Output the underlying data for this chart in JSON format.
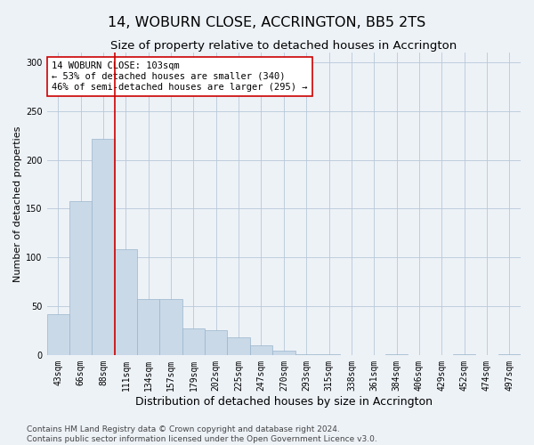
{
  "title": "14, WOBURN CLOSE, ACCRINGTON, BB5 2TS",
  "subtitle": "Size of property relative to detached houses in Accrington",
  "xlabel": "Distribution of detached houses by size in Accrington",
  "ylabel": "Number of detached properties",
  "footer_line1": "Contains HM Land Registry data © Crown copyright and database right 2024.",
  "footer_line2": "Contains public sector information licensed under the Open Government Licence v3.0.",
  "categories": [
    "43sqm",
    "66sqm",
    "88sqm",
    "111sqm",
    "134sqm",
    "157sqm",
    "179sqm",
    "202sqm",
    "225sqm",
    "247sqm",
    "270sqm",
    "293sqm",
    "315sqm",
    "338sqm",
    "361sqm",
    "384sqm",
    "406sqm",
    "429sqm",
    "452sqm",
    "474sqm",
    "497sqm"
  ],
  "values": [
    42,
    158,
    222,
    108,
    57,
    57,
    27,
    25,
    18,
    10,
    4,
    1,
    1,
    0,
    0,
    1,
    0,
    0,
    1,
    0,
    1
  ],
  "bar_color": "#c9d9e8",
  "bar_edge_color": "#9ab5cc",
  "vline_color": "#cc0000",
  "annotation_text": "14 WOBURN CLOSE: 103sqm\n← 53% of detached houses are smaller (340)\n46% of semi-detached houses are larger (295) →",
  "annotation_box_facecolor": "#ffffff",
  "annotation_box_edgecolor": "#cc0000",
  "ylim": [
    0,
    310
  ],
  "yticks": [
    0,
    50,
    100,
    150,
    200,
    250,
    300
  ],
  "bg_color": "#edf2f7",
  "plot_bg_color": "#edf2f7",
  "grid_color": "#b8c8d8",
  "title_fontsize": 11.5,
  "subtitle_fontsize": 9.5,
  "xlabel_fontsize": 9,
  "ylabel_fontsize": 8,
  "tick_fontsize": 7,
  "footer_fontsize": 6.5,
  "annotation_fontsize": 7.5,
  "vline_x_index": 2.5
}
